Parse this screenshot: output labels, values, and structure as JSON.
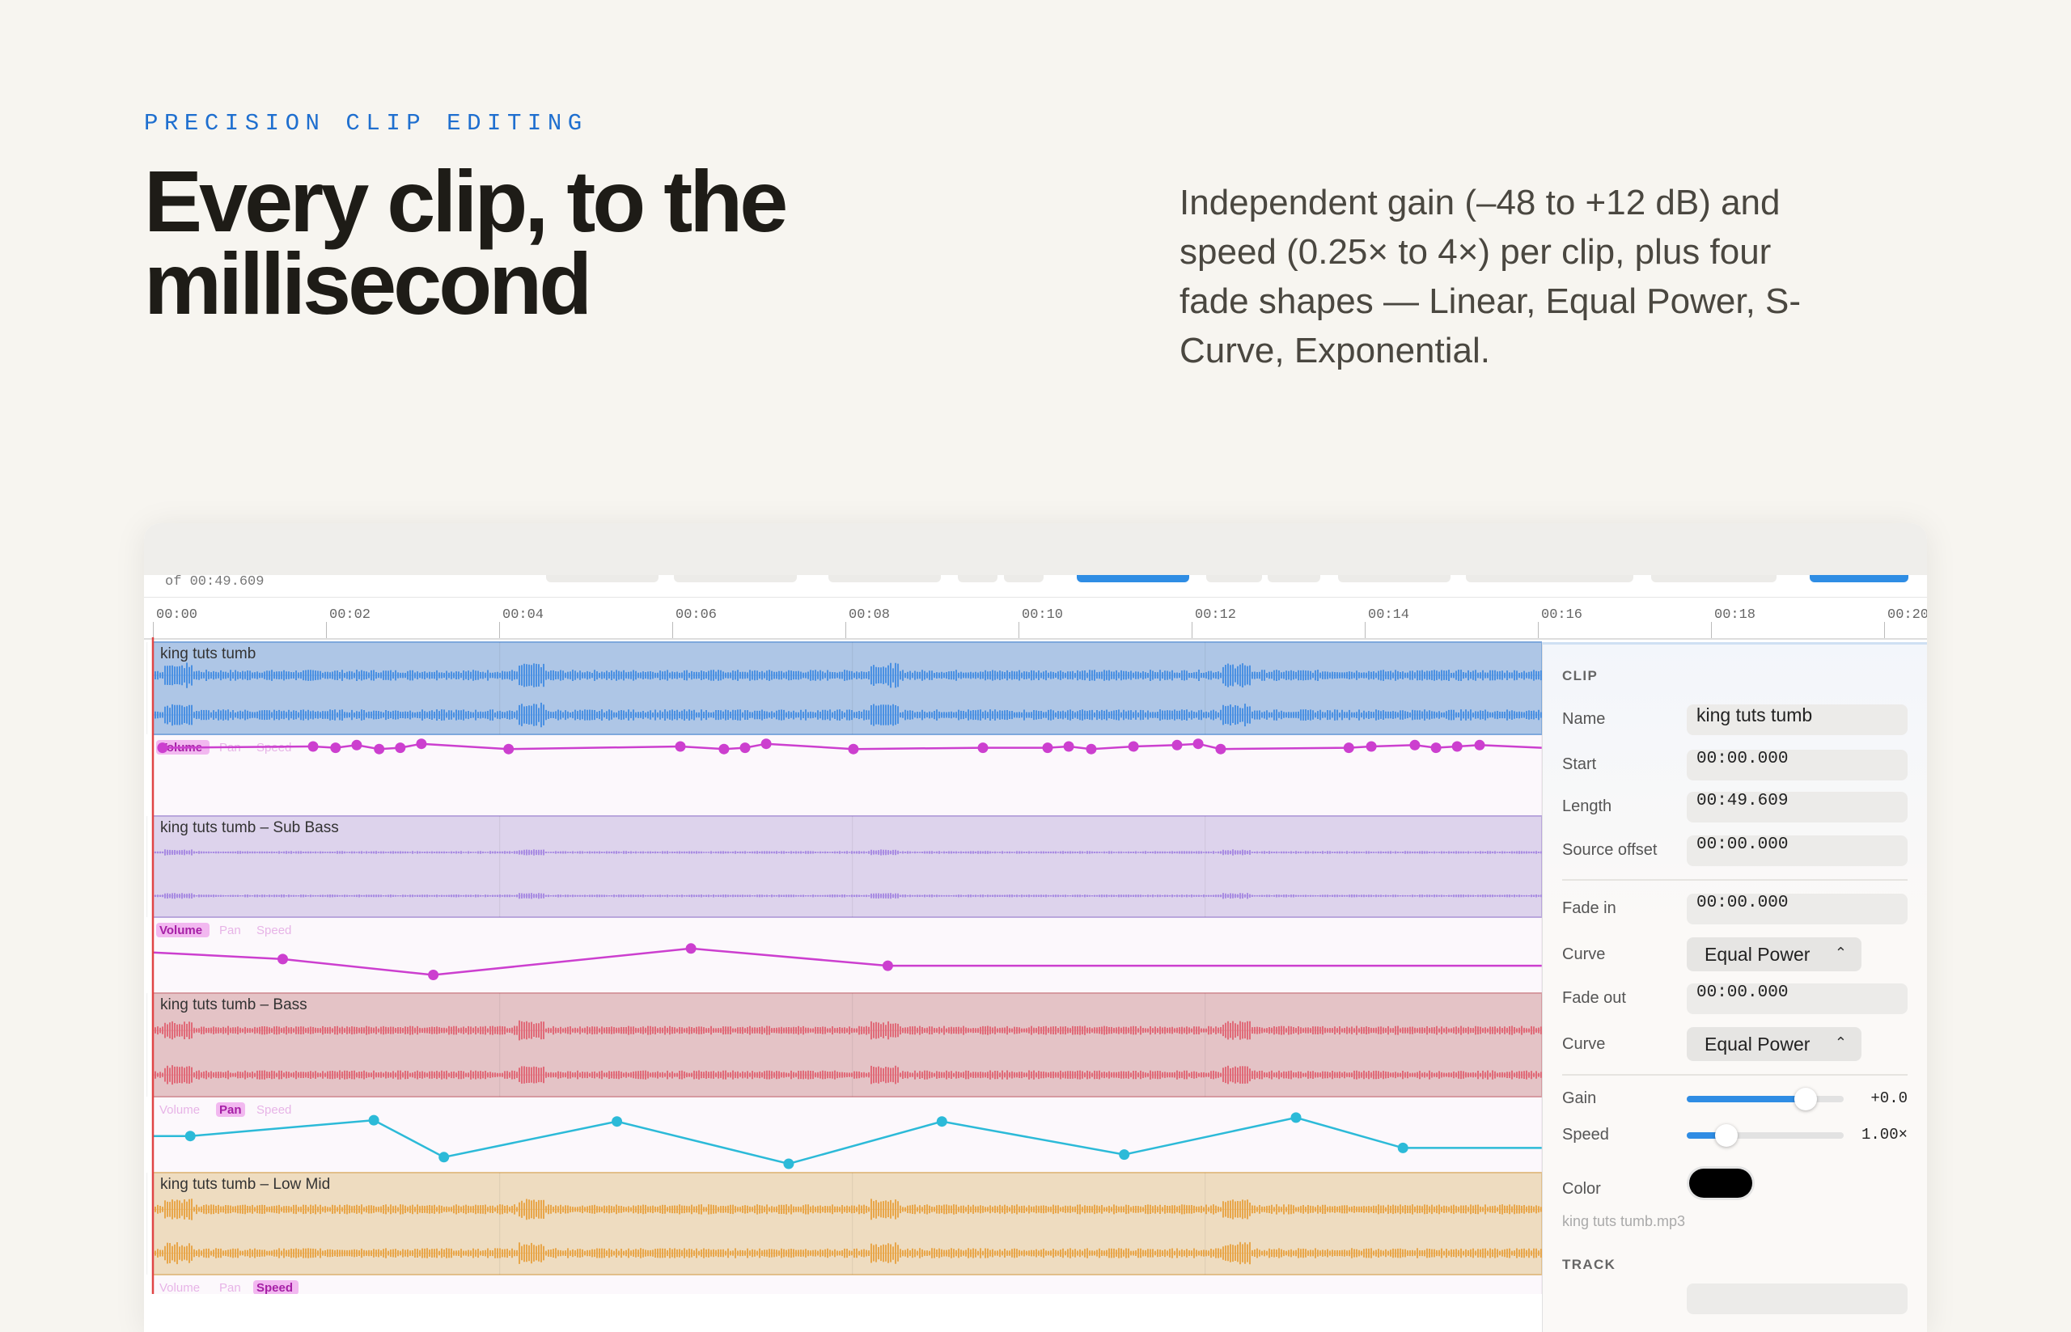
{
  "eyebrow": "PRECISION CLIP EDITING",
  "headline": "Every clip, to the millisecond",
  "description": "Independent gain (–48 to +12 dB) and speed (0.25× to 4×) per clip, plus four fade shapes — Linear, Equal Power, S-Curve, Exponential.",
  "window": {
    "toolbar": {
      "duration": "of 00:49.609"
    },
    "ruler": [
      "00:00",
      "00:02",
      "00:04",
      "00:06",
      "00:08",
      "00:10",
      "00:12",
      "00:14",
      "00:16",
      "00:18",
      "00:20"
    ],
    "tracks": [
      {
        "clip_name": "king tuts tumb",
        "lanes": [
          "Volume",
          "Pan",
          "Speed"
        ]
      },
      {
        "clip_name": "king tuts tumb – Sub Bass",
        "lanes": [
          "Volume",
          "Pan",
          "Speed"
        ]
      },
      {
        "clip_name": "king tuts tumb – Bass",
        "lanes": [
          "Volume",
          "Pan",
          "Speed"
        ]
      },
      {
        "clip_name": "king tuts tumb – Low Mid",
        "lanes": [
          "Volume",
          "Pan",
          "Speed"
        ]
      }
    ],
    "inspector": {
      "section": "CLIP",
      "rows": [
        {
          "label": "Name",
          "value": "king tuts tumb"
        },
        {
          "label": "Start",
          "value": "00:00.000"
        },
        {
          "label": "Length",
          "value": "00:49.609"
        },
        {
          "label": "Source offset",
          "value": "00:00.000"
        },
        {
          "label": "Fade in",
          "value": "00:00.000"
        },
        {
          "label": "Curve",
          "value": "Equal Power"
        },
        {
          "label": "Fade out",
          "value": "00:00.000"
        },
        {
          "label": "Curve",
          "value": "Equal Power"
        },
        {
          "label": "Gain",
          "value": "+0.0"
        },
        {
          "label": "Speed",
          "value": "1.00×"
        }
      ],
      "color_label": "Color",
      "file": "king tuts tumb.mp3",
      "track_section": "TRACK"
    }
  }
}
